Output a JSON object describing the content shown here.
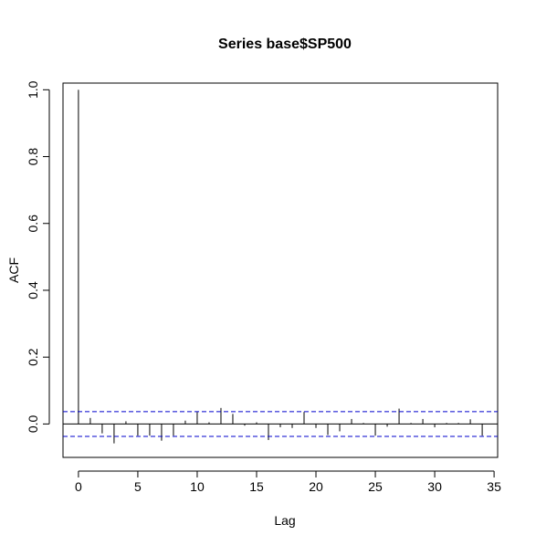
{
  "chart_data": {
    "type": "bar",
    "subtype": "acf-correlogram",
    "title": "Series  base$SP500",
    "xlabel": "Lag",
    "ylabel": "ACF",
    "xlim": [
      -1.3,
      35.3
    ],
    "ylim": [
      -0.1,
      1.02
    ],
    "x_ticks": [
      0,
      5,
      10,
      15,
      20,
      25,
      30,
      35
    ],
    "y_ticks": [
      0.0,
      0.2,
      0.4,
      0.6,
      0.8,
      1.0
    ],
    "x_tick_labels": [
      "0",
      "5",
      "10",
      "15",
      "20",
      "25",
      "30",
      "35"
    ],
    "y_tick_labels": [
      "0.0",
      "0.2",
      "0.4",
      "0.6",
      "0.8",
      "1.0"
    ],
    "lags": [
      0,
      1,
      2,
      3,
      4,
      5,
      6,
      7,
      8,
      9,
      10,
      11,
      12,
      13,
      14,
      15,
      16,
      17,
      18,
      19,
      20,
      21,
      22,
      23,
      24,
      25,
      26,
      27,
      28,
      29,
      30,
      31,
      32,
      33,
      34
    ],
    "values": [
      1.0,
      0.018,
      -0.028,
      -0.058,
      0.008,
      -0.035,
      -0.035,
      -0.05,
      -0.035,
      0.01,
      0.036,
      0.005,
      0.048,
      0.03,
      -0.005,
      0.005,
      -0.048,
      -0.01,
      -0.012,
      0.036,
      -0.012,
      -0.033,
      -0.022,
      0.015,
      0.003,
      -0.035,
      -0.008,
      0.046,
      0.003,
      0.015,
      -0.01,
      0.003,
      0.003,
      0.014,
      -0.035
    ],
    "confidence_bounds": [
      0.037,
      -0.037
    ],
    "confidence_line_color": "#0000cc",
    "zero_line": true,
    "grid": false,
    "box": true
  }
}
